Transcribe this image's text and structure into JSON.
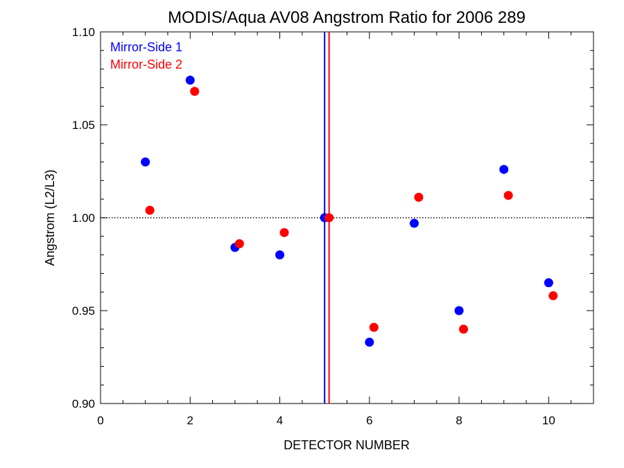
{
  "chart_data": {
    "type": "scatter",
    "title": "MODIS/Aqua AV08 Angstrom Ratio for 2006 289",
    "xlabel": "DETECTOR NUMBER",
    "ylabel": "Angstrom (L2/L3)",
    "xlim": [
      0,
      11
    ],
    "ylim": [
      0.9,
      1.1
    ],
    "xticks": [
      0,
      2,
      4,
      6,
      8,
      10
    ],
    "xtick_labels": [
      "0",
      "2",
      "4",
      "6",
      "8",
      "10"
    ],
    "yticks": [
      0.9,
      0.95,
      1.0,
      1.05,
      1.1
    ],
    "ytick_labels": [
      "0.90",
      "0.95",
      "1.00",
      "1.05",
      "1.10"
    ],
    "reference_hline": 1.0,
    "legend_position": "top-left",
    "series": [
      {
        "name": "Mirror-Side 1",
        "color": "#0000ff",
        "x": [
          1,
          2,
          3,
          4,
          5,
          6,
          7,
          8,
          9,
          10
        ],
        "y": [
          1.03,
          1.074,
          0.984,
          0.98,
          1.0,
          0.933,
          0.997,
          0.95,
          1.026,
          0.965
        ],
        "vline_x": 5
      },
      {
        "name": "Mirror-Side 2",
        "color": "#ff0000",
        "x": [
          1.1,
          2.1,
          3.1,
          4.1,
          5.1,
          6.1,
          7.1,
          8.1,
          9.1,
          10.1
        ],
        "y": [
          1.004,
          1.068,
          0.986,
          0.992,
          1.0,
          0.941,
          1.011,
          0.94,
          1.012,
          0.958
        ],
        "vline_x": 5.1
      }
    ]
  }
}
